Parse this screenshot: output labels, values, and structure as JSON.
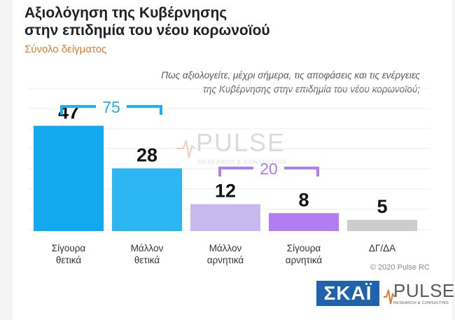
{
  "header": {
    "title_line1": "Αξιολόγηση της Κυβέρνησης",
    "title_line2": "στην επιδημία του νέου κορωνοϊού",
    "subtitle": "Σύνολο δείγματος"
  },
  "question": {
    "line1": "Πως αξιολογείτε, μέχρι σήμερα, τις αποφάσεις και τις ενέργειες",
    "line2": "της Κυβέρνησης στην επιδημία του νέου κορωνοϊού;"
  },
  "chart_data": {
    "type": "bar",
    "categories": [
      [
        "Σίγουρα",
        "θετικά"
      ],
      [
        "Μάλλον",
        "θετικά"
      ],
      [
        "Μάλλον",
        "αρνητικά"
      ],
      [
        "Σίγουρα",
        "αρνητικά"
      ],
      [
        "ΔΓ/ΔΑ"
      ]
    ],
    "values": [
      47,
      28,
      12,
      8,
      5
    ],
    "bar_colors": [
      "#12a9ef",
      "#2db7f2",
      "#c9b8ef",
      "#b27df0",
      "#cccccc"
    ],
    "ylim": [
      0,
      50
    ],
    "grid": true,
    "brackets": [
      {
        "label": "75",
        "from": 0,
        "to": 1,
        "color": "#1fb0ef"
      },
      {
        "label": "20",
        "from": 2,
        "to": 3,
        "color": "#b27df0"
      }
    ]
  },
  "watermark": {
    "word": "PULSE",
    "tagline": "RESEARCH & CONSULTING"
  },
  "footer": {
    "copyright": "© 2020 Pulse RC",
    "logo_skai": "ΣΚΑΪ",
    "logo_pulse": "PULSE",
    "logo_pulse_tagline": "RESEARCH & CONSULTING"
  }
}
